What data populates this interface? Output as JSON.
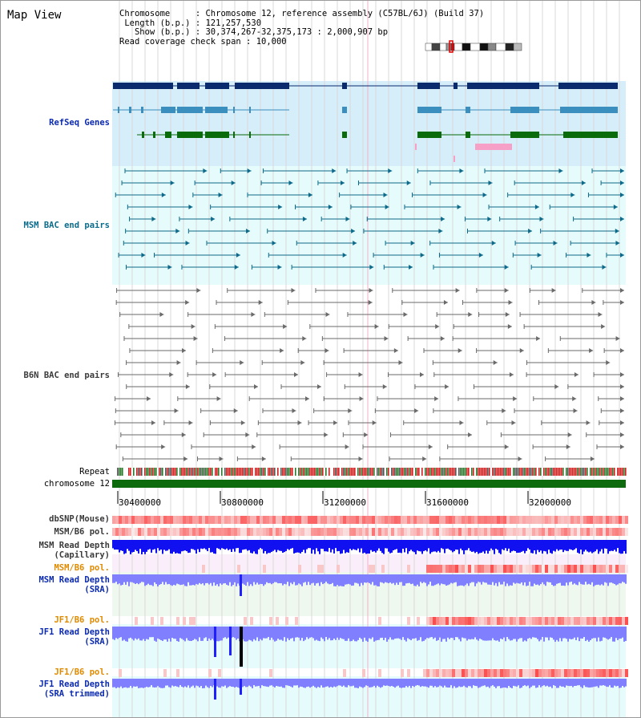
{
  "title": "Map View",
  "info": {
    "chromosome_key": "Chromosome",
    "chromosome_val": "Chromosome 12, reference assembly (C57BL/6J) (Build 37)",
    "length_key": "Length (b.p.)",
    "length_val": "121,257,530",
    "show_key": "Show (b.p.)",
    "show_val": "30,374,267-32,375,173 : 2,000,907 bp",
    "span_key": "Read coverage check span",
    "span_val": "10,000"
  },
  "tracks": {
    "refseq": "RefSeq Genes",
    "msm_bac": "MSM BAC end pairs",
    "b6n_bac": "B6N BAC end pairs",
    "repeat": "Repeat",
    "chromosome": "chromosome 12",
    "dbsnp": "dbSNP(Mouse)",
    "msm_pol": "MSM/B6 pol.",
    "msm_depth_cap_1": "MSM Read Depth",
    "msm_depth_cap_2": "(Capillary)",
    "msm_pol_2": "MSM/B6 pol.",
    "msm_depth_sra_1": "MSM Read Depth",
    "msm_depth_sra_2": "(SRA)",
    "jf1_pol": "JF1/B6 pol.",
    "jf1_depth_sra_1": "JF1 Read Depth",
    "jf1_depth_sra_2": "(SRA)",
    "jf1_pol_2": "JF1/B6 pol.",
    "jf1_depth_trim_1": "JF1 Read Depth",
    "jf1_depth_trim_2": "(SRA trimmed)"
  },
  "axis": {
    "ticks": [
      "30400000",
      "30800000",
      "31200000",
      "31600000",
      "32000000"
    ]
  },
  "colors": {
    "refseq_band": "#d6eef9",
    "bac_band": "#e6fbfb",
    "gene_dark": "#0a2a6e",
    "gene_mid": "#3a8fbf",
    "gene_green": "#0a6b0a",
    "msm_line": "#0d6a8a",
    "b6n_line": "#6a6a6a",
    "chrom_bar": "#0d6b0d",
    "depth_cap": "#1010f0",
    "depth_sra": "#8080ff",
    "jf1_black": "#000000"
  }
}
